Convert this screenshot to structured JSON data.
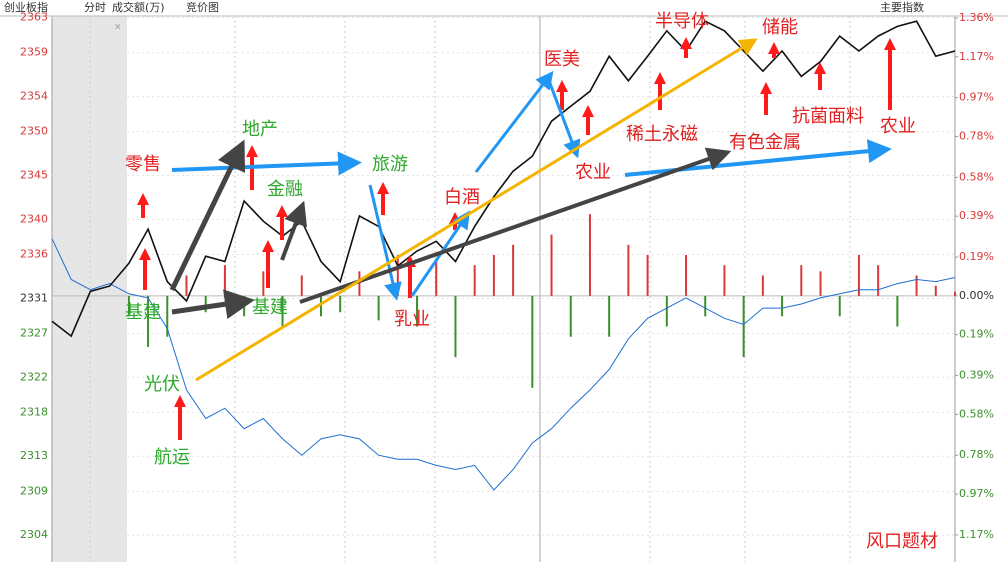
{
  "header": {
    "items": [
      "创业板指",
      "分时",
      "成交额(万)",
      "竞价图"
    ],
    "right": "主要指数",
    "close": "×"
  },
  "chart_data": {
    "type": "line",
    "categories": [
      null,
      null,
      null,
      null,
      null,
      null,
      null,
      null,
      null,
      null,
      null,
      null,
      null,
      null,
      null,
      null,
      null,
      null,
      null,
      null,
      null,
      null,
      null,
      null,
      null,
      null,
      null,
      null,
      null,
      null,
      null,
      null,
      null,
      null,
      null,
      null,
      null,
      null,
      null,
      null,
      null,
      null,
      null,
      null,
      null,
      null,
      null,
      null
    ],
    "ylim": [
      2301.4,
      2364.1
    ],
    "yticks": [
      2363,
      2359,
      2354,
      2350,
      2345,
      2340,
      2336,
      2331,
      2327,
      2322,
      2318,
      2313,
      2309,
      2304
    ],
    "y2lim": [
      -1.283,
      1.409
    ],
    "y2ticks": [
      {
        "value": 1.36,
        "label": "1.36%"
      },
      {
        "value": 1.17,
        "label": "1.17%"
      },
      {
        "value": 0.97,
        "label": "0.97%"
      },
      {
        "value": 0.78,
        "label": "0.78%"
      },
      {
        "value": 0.58,
        "label": "0.58%"
      },
      {
        "value": 0.39,
        "label": "0.39%"
      },
      {
        "value": 0.19,
        "label": "0.19%"
      },
      {
        "value": 0,
        "label": "0.00%"
      },
      {
        "value": -0.19,
        "label": "0.19%"
      },
      {
        "value": -0.39,
        "label": "0.39%"
      },
      {
        "value": -0.58,
        "label": "0.58%"
      },
      {
        "value": -0.78,
        "label": "0.78%"
      },
      {
        "value": -0.97,
        "label": "0.97%"
      },
      {
        "value": -1.17,
        "label": "1.17%"
      }
    ],
    "series": [
      {
        "kind": "bar",
        "axis": "y2",
        "up_color": "#d9383a",
        "down_color": "#3a8f2a",
        "values": [
          0,
          0,
          0,
          0,
          -0.1,
          -0.25,
          -0.2,
          0.1,
          -0.08,
          0.15,
          -0.1,
          0.12,
          -0.15,
          0.1,
          -0.1,
          -0.08,
          0.12,
          -0.12,
          0.2,
          -0.15,
          0.18,
          -0.3,
          0.15,
          0.2,
          0.25,
          -0.45,
          0.3,
          -0.2,
          0.4,
          -0.2,
          0.25,
          0.2,
          -0.15,
          0.2,
          -0.1,
          0.15,
          -0.3,
          0.1,
          -0.1,
          0.15,
          0.12,
          -0.1,
          0.2,
          0.15,
          -0.15,
          0.1,
          0.05,
          0.02
        ]
      },
      {
        "kind": "line",
        "axis": "y2",
        "color": "#1f6fd1",
        "values": [
          0.28,
          0.08,
          0.03,
          0.06,
          0.01,
          -0.01,
          -0.16,
          -0.46,
          -0.6,
          -0.55,
          -0.65,
          -0.6,
          -0.7,
          -0.78,
          -0.7,
          -0.68,
          -0.7,
          -0.78,
          -0.8,
          -0.8,
          -0.83,
          -0.85,
          -0.83,
          -0.95,
          -0.85,
          -0.72,
          -0.65,
          -0.55,
          -0.46,
          -0.36,
          -0.21,
          -0.11,
          -0.06,
          -0.01,
          -0.06,
          -0.11,
          -0.14,
          -0.06,
          -0.06,
          -0.04,
          -0.01,
          0.01,
          0.03,
          0.03,
          0.06,
          0.08,
          0.07,
          0.09
        ]
      },
      {
        "kind": "line",
        "axis": "y",
        "color": "#111111",
        "values": [
          2328.4,
          2326.7,
          2331.8,
          2332.4,
          2335.0,
          2338.9,
          2332.9,
          2330.7,
          2335.8,
          2335.2,
          2342.1,
          2339.8,
          2338.1,
          2339.8,
          2335.2,
          2332.9,
          2340.4,
          2339.2,
          2334.7,
          2336.4,
          2337.5,
          2335.2,
          2339.2,
          2342.6,
          2345.5,
          2347.2,
          2351.2,
          2352.9,
          2354.6,
          2358.6,
          2355.8,
          2358.6,
          2361.5,
          2359.2,
          2362.6,
          2361.5,
          2359.2,
          2356.9,
          2359.2,
          2356.3,
          2358.0,
          2360.9,
          2359.2,
          2360.9,
          2362.0,
          2362.6,
          2358.6,
          2359.2
        ]
      }
    ],
    "annotations": [
      {
        "text": "零售",
        "color": "#e02020"
      },
      {
        "text": "地产",
        "color": "#2ea82e"
      },
      {
        "text": "金融",
        "color": "#2ea82e"
      },
      {
        "text": "旅游",
        "color": "#2ea82e"
      },
      {
        "text": "白酒",
        "color": "#e02020"
      },
      {
        "text": "医美",
        "color": "#e02020"
      },
      {
        "text": "半导体",
        "color": "#e02020"
      },
      {
        "text": "储能",
        "color": "#e02020"
      },
      {
        "text": "稀土永磁",
        "color": "#e02020"
      },
      {
        "text": "农业",
        "color": "#e02020"
      },
      {
        "text": "有色金属",
        "color": "#e02020"
      },
      {
        "text": "抗菌面料",
        "color": "#e02020"
      },
      {
        "text": "农业",
        "color": "#e02020"
      },
      {
        "text": "基建",
        "color": "#2ea82e"
      },
      {
        "text": "基建",
        "color": "#2ea82e"
      },
      {
        "text": "乳业",
        "color": "#e02020"
      },
      {
        "text": "光伏",
        "color": "#2ea82e"
      },
      {
        "text": "航运",
        "color": "#2ea82e"
      },
      {
        "text": "风口题材",
        "color": "#e02020"
      }
    ]
  }
}
